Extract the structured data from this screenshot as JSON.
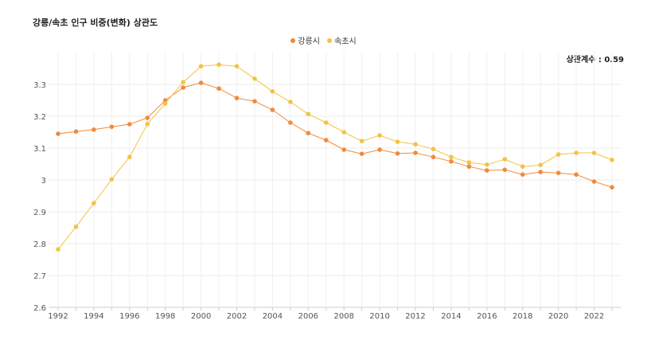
{
  "chart_data": {
    "type": "line",
    "title": "강릉/속초 인구 비중(변화) 상관도",
    "annotation": "상관계수 : 0.59",
    "legend_position": "top-center",
    "grid": true,
    "x": [
      1992,
      1993,
      1994,
      1995,
      1996,
      1997,
      1998,
      1999,
      2000,
      2001,
      2002,
      2003,
      2004,
      2005,
      2006,
      2007,
      2008,
      2009,
      2010,
      2011,
      2012,
      2013,
      2014,
      2015,
      2016,
      2017,
      2018,
      2019,
      2020,
      2021,
      2022,
      2023
    ],
    "x_ticks": [
      "1992",
      "1994",
      "1996",
      "1998",
      "2000",
      "2002",
      "2004",
      "2006",
      "2008",
      "2010",
      "2012",
      "2014",
      "2016",
      "2018",
      "2020",
      "2022"
    ],
    "y_ticks": [
      "2.6",
      "2.7",
      "2.8",
      "2.9",
      "3",
      "3.1",
      "3.2",
      "3.3"
    ],
    "ylim": [
      2.6,
      3.4
    ],
    "series": [
      {
        "name": "강릉시",
        "color": "#f08a3c",
        "values": [
          3.145,
          3.152,
          3.158,
          3.167,
          3.175,
          3.195,
          3.25,
          3.29,
          3.305,
          3.287,
          3.257,
          3.247,
          3.22,
          3.18,
          3.147,
          3.125,
          3.095,
          3.082,
          3.095,
          3.083,
          3.085,
          3.072,
          3.058,
          3.042,
          3.03,
          3.032,
          3.017,
          3.025,
          3.022,
          3.017,
          2.995,
          2.977
        ]
      },
      {
        "name": "속초시",
        "color": "#f5c242",
        "values": [
          2.782,
          2.853,
          2.927,
          3.002,
          3.072,
          3.176,
          3.24,
          3.307,
          3.357,
          3.362,
          3.357,
          3.318,
          3.278,
          3.245,
          3.207,
          3.18,
          3.15,
          3.122,
          3.14,
          3.12,
          3.112,
          3.097,
          3.072,
          3.055,
          3.048,
          3.065,
          3.042,
          3.047,
          3.08,
          3.085,
          3.085,
          3.063
        ]
      }
    ]
  }
}
